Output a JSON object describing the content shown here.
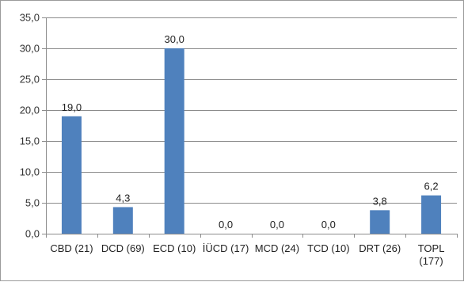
{
  "chart_data": {
    "type": "bar",
    "categories": [
      [
        "CBD (21)"
      ],
      [
        "DCD (69)"
      ],
      [
        "ECD (10)"
      ],
      [
        "İÜCD (17)"
      ],
      [
        "MCD (24)"
      ],
      [
        "TCD (10)"
      ],
      [
        "DRT (26)"
      ],
      [
        "TOPL",
        "(177)"
      ]
    ],
    "values": [
      19.0,
      4.3,
      30.0,
      0.0,
      0.0,
      0.0,
      3.8,
      6.2
    ],
    "value_labels": [
      "19,0",
      "4,3",
      "30,0",
      "0,0",
      "0,0",
      "0,0",
      "3,8",
      "6,2"
    ],
    "ylim": [
      0,
      35
    ],
    "yticks": [
      0,
      5,
      10,
      15,
      20,
      25,
      30,
      35
    ],
    "ytick_labels": [
      "0,0",
      "5,0",
      "10,0",
      "15,0",
      "20,0",
      "25,0",
      "30,0",
      "35,0"
    ],
    "grid": true,
    "legend": "none",
    "bar_color": "#4f81bd",
    "grid_color": "#8c8c8c",
    "axis_color": "#8c8c8c"
  }
}
